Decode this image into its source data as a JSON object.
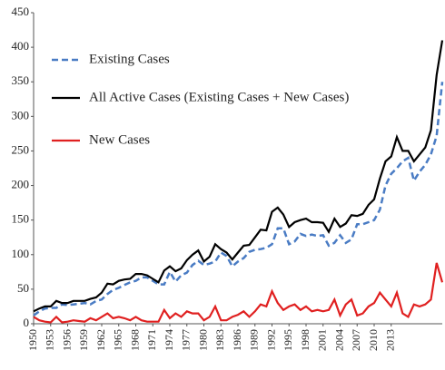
{
  "chart_data": {
    "type": "line",
    "x": [
      1950,
      1951,
      1952,
      1953,
      1954,
      1955,
      1956,
      1957,
      1958,
      1959,
      1960,
      1961,
      1962,
      1963,
      1964,
      1965,
      1966,
      1967,
      1968,
      1969,
      1970,
      1971,
      1972,
      1973,
      1974,
      1975,
      1976,
      1977,
      1978,
      1979,
      1980,
      1981,
      1982,
      1983,
      1984,
      1985,
      1986,
      1987,
      1988,
      1989,
      1990,
      1991,
      1992,
      1993,
      1994,
      1995,
      1996,
      1997,
      1998,
      1999,
      2000,
      2001,
      2002,
      2003,
      2004,
      2005,
      2006,
      2007,
      2008,
      2009,
      2010,
      2011,
      2012,
      2013,
      2014,
      2015,
      2016,
      2017,
      2018,
      2019,
      2020,
      2021,
      2022
    ],
    "series": [
      {
        "name": "Existing Cases",
        "color": "#4a7cc4",
        "dash": true,
        "values": [
          12,
          18,
          22,
          23,
          23,
          28,
          27,
          28,
          29,
          30,
          28,
          33,
          35,
          43,
          49,
          52,
          56,
          60,
          62,
          67,
          67,
          62,
          57,
          57,
          75,
          61,
          70,
          74,
          85,
          91,
          85,
          87,
          90,
          103,
          98,
          83,
          90,
          95,
          104,
          107,
          108,
          110,
          115,
          138,
          138,
          115,
          119,
          130,
          127,
          129,
          127,
          128,
          113,
          117,
          128,
          117,
          122,
          144,
          144,
          147,
          150,
          165,
          200,
          217,
          225,
          235,
          240,
          207,
          220,
          230,
          245,
          272,
          350
        ]
      },
      {
        "name": "All Active Cases (Existing Cases + New Cases)",
        "color": "#000000",
        "dash": false,
        "values": [
          18,
          22,
          25,
          25,
          33,
          30,
          30,
          33,
          33,
          33,
          36,
          38,
          45,
          58,
          57,
          62,
          64,
          65,
          72,
          72,
          70,
          65,
          60,
          77,
          83,
          76,
          80,
          92,
          100,
          106,
          90,
          97,
          115,
          108,
          103,
          93,
          103,
          113,
          114,
          125,
          136,
          135,
          162,
          168,
          158,
          140,
          147,
          150,
          152,
          147,
          147,
          146,
          133,
          152,
          140,
          145,
          157,
          156,
          159,
          172,
          180,
          210,
          235,
          242,
          270,
          250,
          250,
          235,
          245,
          255,
          280,
          360,
          410
        ]
      },
      {
        "name": "New Cases",
        "color": "#e02020",
        "dash": false,
        "values": [
          10,
          5,
          3,
          2,
          10,
          2,
          3,
          5,
          4,
          3,
          8,
          5,
          10,
          15,
          8,
          10,
          8,
          5,
          10,
          5,
          3,
          3,
          3,
          20,
          8,
          15,
          10,
          18,
          15,
          15,
          5,
          10,
          25,
          5,
          5,
          10,
          13,
          18,
          10,
          18,
          28,
          25,
          47,
          30,
          20,
          25,
          28,
          20,
          25,
          18,
          20,
          18,
          20,
          35,
          12,
          28,
          35,
          12,
          15,
          25,
          30,
          45,
          35,
          25,
          45,
          15,
          10,
          28,
          25,
          28,
          35,
          88,
          60
        ]
      }
    ],
    "xlim": [
      1950,
      2022
    ],
    "xticks": [
      1950,
      1953,
      1956,
      1959,
      1962,
      1965,
      1968,
      1971,
      1974,
      1977,
      1980,
      1983,
      1986,
      1989,
      1992,
      1995,
      1998,
      2001,
      2004,
      2007,
      2010,
      2013
    ],
    "ylim": [
      0,
      450
    ],
    "yticks": [
      0,
      50,
      100,
      150,
      200,
      250,
      300,
      350,
      400,
      450
    ]
  }
}
